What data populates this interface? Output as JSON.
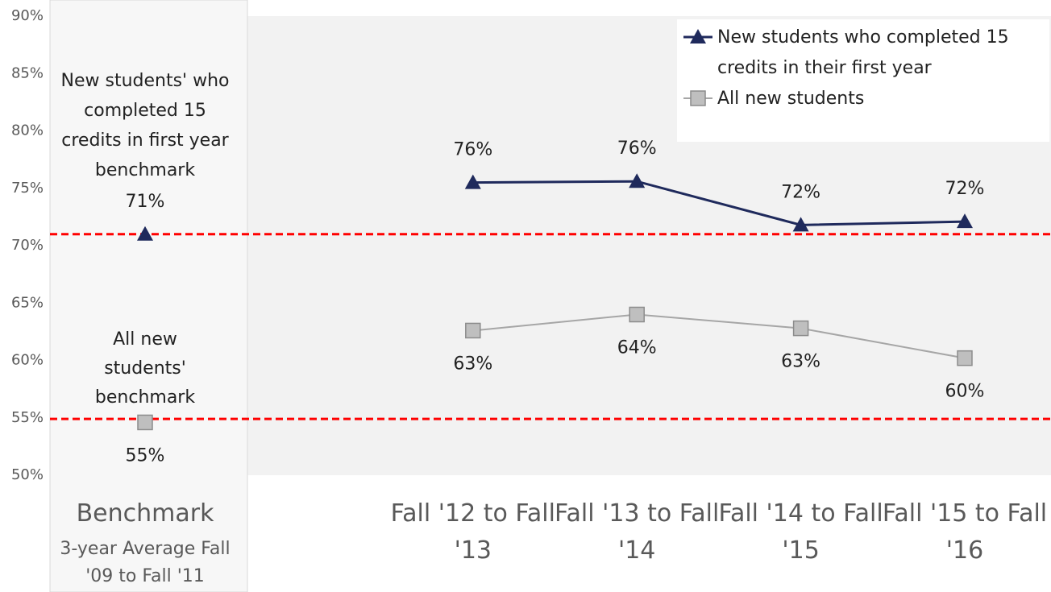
{
  "chart_data": {
    "type": "line",
    "categories": [
      "Benchmark",
      null,
      "Fall '12 to Fall '13",
      "Fall '13 to Fall '14",
      "Fall '14 to Fall '15",
      "Fall '15 to Fall '16"
    ],
    "category_note": "3-year Average Fall '09 to Fall '11",
    "series": [
      {
        "name": "New students who completed 15 credits in their first year",
        "color": "#1f2a5c",
        "marker": "triangle",
        "values": [
          71,
          null,
          75.5,
          75.6,
          71.8,
          72.1
        ],
        "value_labels": [
          "71%",
          null,
          "76%",
          "76%",
          "72%",
          "72%"
        ],
        "label_position": "above"
      },
      {
        "name": "All new students",
        "color": "#bfbfbf",
        "marker": "square",
        "values": [
          54.6,
          null,
          62.6,
          64.0,
          62.8,
          60.2
        ],
        "value_labels": [
          "55%",
          null,
          "63%",
          "64%",
          "63%",
          "60%"
        ],
        "label_position": "below"
      }
    ],
    "reference_lines": [
      {
        "value": 71,
        "color": "#ff0000",
        "style": "dashed"
      },
      {
        "value": 54.9,
        "color": "#ff0000",
        "style": "dashed"
      }
    ],
    "annotations": [
      "New students' who completed 15 credits in first year benchmark",
      "All new students' benchmark"
    ],
    "ylim": [
      50,
      90
    ],
    "yticks": [
      {
        "value": 50,
        "label": "50%"
      },
      {
        "value": 55,
        "label": "55%"
      },
      {
        "value": 60,
        "label": "60%"
      },
      {
        "value": 65,
        "label": "65%"
      },
      {
        "value": 70,
        "label": "70%"
      },
      {
        "value": 75,
        "label": "75%"
      },
      {
        "value": 80,
        "label": "80%"
      },
      {
        "value": 85,
        "label": "85%"
      },
      {
        "value": 90,
        "label": "90%"
      }
    ],
    "grid": false,
    "legend": "upper right"
  }
}
